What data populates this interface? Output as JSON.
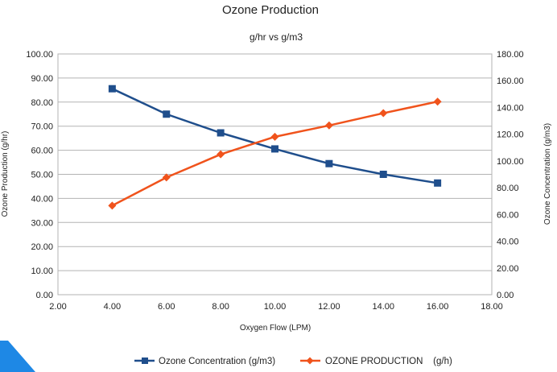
{
  "chart_data": {
    "type": "line",
    "title": "Ozone Production",
    "subtitle": "g/hr vs g/m3",
    "xlabel": "Oxygen Flow (LPM)",
    "ylabel_left": "Ozone Production (g/hr)",
    "ylabel_right": "Ozone Concentration (g/m3)",
    "xlim": [
      2,
      18
    ],
    "xticks": [
      2,
      4,
      6,
      8,
      10,
      12,
      14,
      16,
      18
    ],
    "ylim_left": [
      0,
      100
    ],
    "yticks_left": [
      0,
      10,
      20,
      30,
      40,
      50,
      60,
      70,
      80,
      90,
      100
    ],
    "ylim_right": [
      0,
      180
    ],
    "yticks_right": [
      0,
      20,
      40,
      60,
      80,
      100,
      120,
      140,
      160,
      180
    ],
    "tick_decimals": 2,
    "grid": true,
    "legend_position": "bottom",
    "series": [
      {
        "name": "Ozone Concentration (g/m3)",
        "axis": "right",
        "marker": "square",
        "color": "#1f4e8c",
        "x": [
          4,
          6,
          8,
          10,
          12,
          14,
          16
        ],
        "y": [
          154,
          135,
          121,
          109,
          98,
          90,
          83.5
        ]
      },
      {
        "name": "OZONE PRODUCTION    (g/h)",
        "axis": "left",
        "marker": "diamond",
        "color": "#f0531c",
        "x": [
          4,
          6,
          8,
          10,
          12,
          14,
          16
        ],
        "y": [
          37,
          48.7,
          58.3,
          65.6,
          70.3,
          75.4,
          80.2
        ]
      }
    ]
  },
  "decor": {
    "corner_color": "#1e88e5"
  }
}
